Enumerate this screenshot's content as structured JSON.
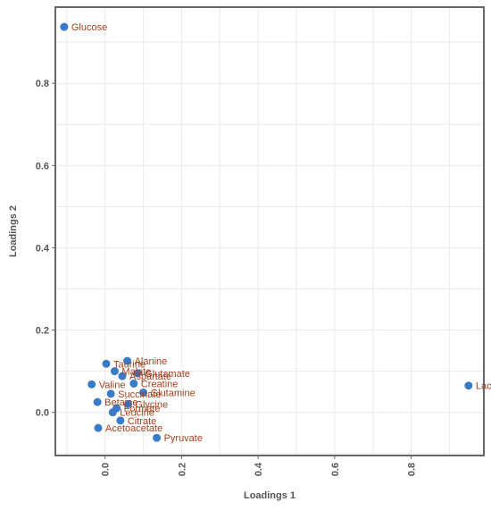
{
  "chart_data": {
    "type": "scatter",
    "xlabel": "Loadings 1",
    "ylabel": "Loadings 2",
    "xlim": [
      -0.13,
      0.99
    ],
    "ylim": [
      -0.105,
      0.985
    ],
    "x_ticks": [
      0.0,
      0.2,
      0.4,
      0.6,
      0.8
    ],
    "x_tick_labels": [
      "0.0",
      "0.2",
      "0.4",
      "0.6",
      "0.8"
    ],
    "y_ticks": [
      0.0,
      0.2,
      0.4,
      0.6,
      0.8
    ],
    "y_tick_labels": [
      "0.0",
      "0.2",
      "0.4",
      "0.6",
      "0.8"
    ],
    "grid": true,
    "points": [
      {
        "label": "Glucose",
        "x": -0.107,
        "y": 0.937
      },
      {
        "label": "Lactate",
        "x": 0.95,
        "y": 0.065
      },
      {
        "label": "Pyruvate",
        "x": 0.135,
        "y": -0.062
      },
      {
        "label": "Alanine",
        "x": 0.058,
        "y": 0.125
      },
      {
        "label": "Taurine",
        "x": 0.003,
        "y": 0.118
      },
      {
        "label": "Glutamate",
        "x": 0.085,
        "y": 0.095
      },
      {
        "label": "Malate",
        "x": 0.025,
        "y": 0.1
      },
      {
        "label": "Aspartate",
        "x": 0.045,
        "y": 0.088
      },
      {
        "label": "Creatine",
        "x": 0.075,
        "y": 0.07
      },
      {
        "label": "Valine",
        "x": -0.035,
        "y": 0.068
      },
      {
        "label": "Glutamine",
        "x": 0.1,
        "y": 0.048
      },
      {
        "label": "Succinate",
        "x": 0.015,
        "y": 0.045
      },
      {
        "label": "Acetoacetate",
        "x": -0.018,
        "y": -0.038
      },
      {
        "label": "Citrate",
        "x": 0.04,
        "y": -0.02
      },
      {
        "label": "Formate",
        "x": 0.03,
        "y": 0.01
      },
      {
        "label": "Betaine",
        "x": -0.02,
        "y": 0.025
      },
      {
        "label": "Leucine",
        "x": 0.02,
        "y": 0.0
      },
      {
        "label": "Glycine",
        "x": 0.06,
        "y": 0.02
      }
    ],
    "point_color": "#3a7bc8",
    "label_color": "#a0411f"
  }
}
